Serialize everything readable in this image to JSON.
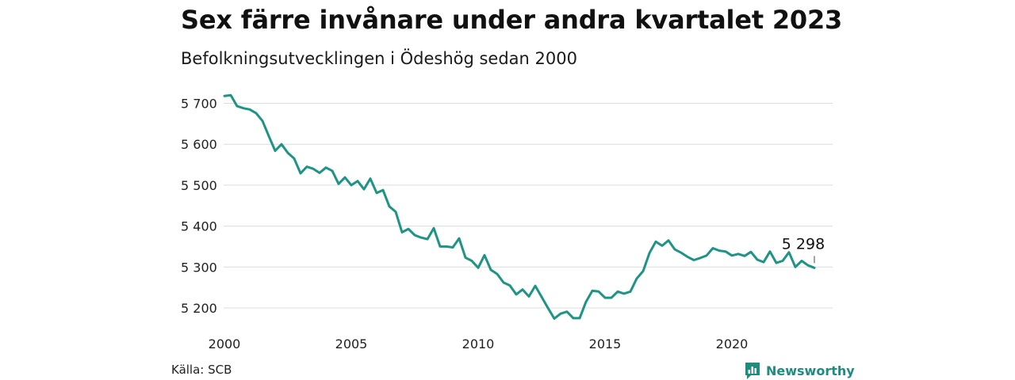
{
  "title": "Sex färre invånare under andra kvartalet 2023",
  "subtitle": "Befolkningsutvecklingen i Ödeshög sedan 2000",
  "source": "Källa: SCB",
  "brand": {
    "name": "Newsworthy",
    "icon": "newsworthy-logo-icon",
    "color": "#1e8c7e"
  },
  "chart_data": {
    "type": "line",
    "color": "#1e9485",
    "grid": true,
    "ylim": [
      5170,
      5725
    ],
    "xlim": [
      2000,
      2023.5
    ],
    "y_ticks": [
      {
        "value": 5200,
        "label": "5 200"
      },
      {
        "value": 5300,
        "label": "5 300"
      },
      {
        "value": 5400,
        "label": "5 400"
      },
      {
        "value": 5500,
        "label": "5 500"
      },
      {
        "value": 5600,
        "label": "5 600"
      },
      {
        "value": 5700,
        "label": "5 700"
      }
    ],
    "x_ticks": [
      {
        "value": 2000,
        "label": "2000"
      },
      {
        "value": 2005,
        "label": "2005"
      },
      {
        "value": 2010,
        "label": "2010"
      },
      {
        "value": 2015,
        "label": "2015"
      },
      {
        "value": 2020,
        "label": "2020"
      }
    ],
    "last_label": "5 298",
    "x": [
      "2000-Q1",
      "2000-Q2",
      "2000-Q3",
      "2000-Q4",
      "2001-Q1",
      "2001-Q2",
      "2001-Q3",
      "2001-Q4",
      "2002-Q1",
      "2002-Q2",
      "2002-Q3",
      "2002-Q4",
      "2003-Q1",
      "2003-Q2",
      "2003-Q3",
      "2003-Q4",
      "2004-Q1",
      "2004-Q2",
      "2004-Q3",
      "2004-Q4",
      "2005-Q1",
      "2005-Q2",
      "2005-Q3",
      "2005-Q4",
      "2006-Q1",
      "2006-Q2",
      "2006-Q3",
      "2006-Q4",
      "2007-Q1",
      "2007-Q2",
      "2007-Q3",
      "2007-Q4",
      "2008-Q1",
      "2008-Q2",
      "2008-Q3",
      "2008-Q4",
      "2009-Q1",
      "2009-Q2",
      "2009-Q3",
      "2009-Q4",
      "2010-Q1",
      "2010-Q2",
      "2010-Q3",
      "2010-Q4",
      "2011-Q1",
      "2011-Q2",
      "2011-Q3",
      "2011-Q4",
      "2012-Q1",
      "2012-Q2",
      "2012-Q3",
      "2012-Q4",
      "2013-Q1",
      "2013-Q2",
      "2013-Q3",
      "2013-Q4",
      "2014-Q1",
      "2014-Q2",
      "2014-Q3",
      "2014-Q4",
      "2015-Q1",
      "2015-Q2",
      "2015-Q3",
      "2015-Q4",
      "2016-Q1",
      "2016-Q2",
      "2016-Q3",
      "2016-Q4",
      "2017-Q1",
      "2017-Q2",
      "2017-Q3",
      "2017-Q4",
      "2018-Q1",
      "2018-Q2",
      "2018-Q3",
      "2018-Q4",
      "2019-Q1",
      "2019-Q2",
      "2019-Q3",
      "2019-Q4",
      "2020-Q1",
      "2020-Q2",
      "2020-Q3",
      "2020-Q4",
      "2021-Q1",
      "2021-Q2",
      "2021-Q3",
      "2021-Q4",
      "2022-Q1",
      "2022-Q2",
      "2022-Q3",
      "2022-Q4",
      "2023-Q1",
      "2023-Q2"
    ],
    "values": [
      5718,
      5720,
      5693,
      5688,
      5685,
      5676,
      5657,
      5620,
      5584,
      5600,
      5579,
      5565,
      5529,
      5545,
      5540,
      5530,
      5543,
      5535,
      5503,
      5519,
      5500,
      5510,
      5490,
      5516,
      5481,
      5488,
      5448,
      5435,
      5385,
      5393,
      5378,
      5372,
      5368,
      5395,
      5350,
      5350,
      5348,
      5370,
      5323,
      5315,
      5298,
      5329,
      5293,
      5283,
      5262,
      5255,
      5233,
      5245,
      5228,
      5254,
      5227,
      5200,
      5174,
      5186,
      5191,
      5175,
      5175,
      5215,
      5242,
      5240,
      5225,
      5225,
      5240,
      5235,
      5240,
      5272,
      5290,
      5334,
      5362,
      5352,
      5365,
      5343,
      5335,
      5325,
      5317,
      5322,
      5328,
      5346,
      5340,
      5338,
      5328,
      5332,
      5327,
      5337,
      5318,
      5312,
      5338,
      5310,
      5315,
      5336,
      5300,
      5315,
      5304,
      5298
    ]
  }
}
